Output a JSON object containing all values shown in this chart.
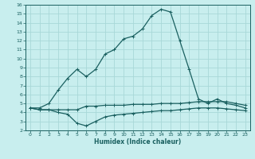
{
  "xlabel": "Humidex (Indice chaleur)",
  "bg_color": "#c8eeee",
  "grid_color": "#a8d8d8",
  "line_color": "#1a6060",
  "xlim": [
    -0.5,
    23.5
  ],
  "ylim": [
    2,
    16
  ],
  "xticks": [
    0,
    1,
    2,
    3,
    4,
    5,
    6,
    7,
    8,
    9,
    10,
    11,
    12,
    13,
    14,
    15,
    16,
    17,
    18,
    19,
    20,
    21,
    22,
    23
  ],
  "yticks": [
    2,
    3,
    4,
    5,
    6,
    7,
    8,
    9,
    10,
    11,
    12,
    13,
    14,
    15,
    16
  ],
  "line_peak_x": [
    0,
    1,
    2,
    3,
    4,
    5,
    6,
    7,
    8,
    9,
    10,
    11,
    12,
    13,
    14,
    15,
    16,
    17,
    18,
    19,
    20,
    21,
    22,
    23
  ],
  "line_peak_y": [
    4.5,
    4.5,
    5.0,
    6.5,
    7.8,
    8.8,
    8.0,
    8.8,
    10.5,
    11.0,
    12.2,
    12.5,
    13.3,
    14.8,
    15.5,
    15.2,
    12.0,
    8.8,
    5.5,
    5.0,
    5.5,
    5.0,
    4.8,
    4.5
  ],
  "line_upper_x": [
    0,
    1,
    2,
    3,
    4,
    5,
    6,
    7,
    8,
    9,
    10,
    11,
    12,
    13,
    14,
    15,
    16,
    17,
    18,
    19,
    20,
    21,
    22,
    23
  ],
  "line_upper_y": [
    4.5,
    4.3,
    4.3,
    4.3,
    4.3,
    4.3,
    4.7,
    4.7,
    4.8,
    4.8,
    4.8,
    4.9,
    4.9,
    4.9,
    5.0,
    5.0,
    5.0,
    5.1,
    5.2,
    5.2,
    5.2,
    5.2,
    5.0,
    4.8
  ],
  "line_lower_x": [
    0,
    1,
    2,
    3,
    4,
    5,
    6,
    7,
    8,
    9,
    10,
    11,
    12,
    13,
    14,
    15,
    16,
    17,
    18,
    19,
    20,
    21,
    22,
    23
  ],
  "line_lower_y": [
    4.5,
    4.3,
    4.3,
    4.0,
    3.8,
    2.8,
    2.5,
    3.0,
    3.5,
    3.7,
    3.8,
    3.9,
    4.0,
    4.1,
    4.2,
    4.2,
    4.3,
    4.4,
    4.5,
    4.5,
    4.5,
    4.4,
    4.3,
    4.2
  ]
}
